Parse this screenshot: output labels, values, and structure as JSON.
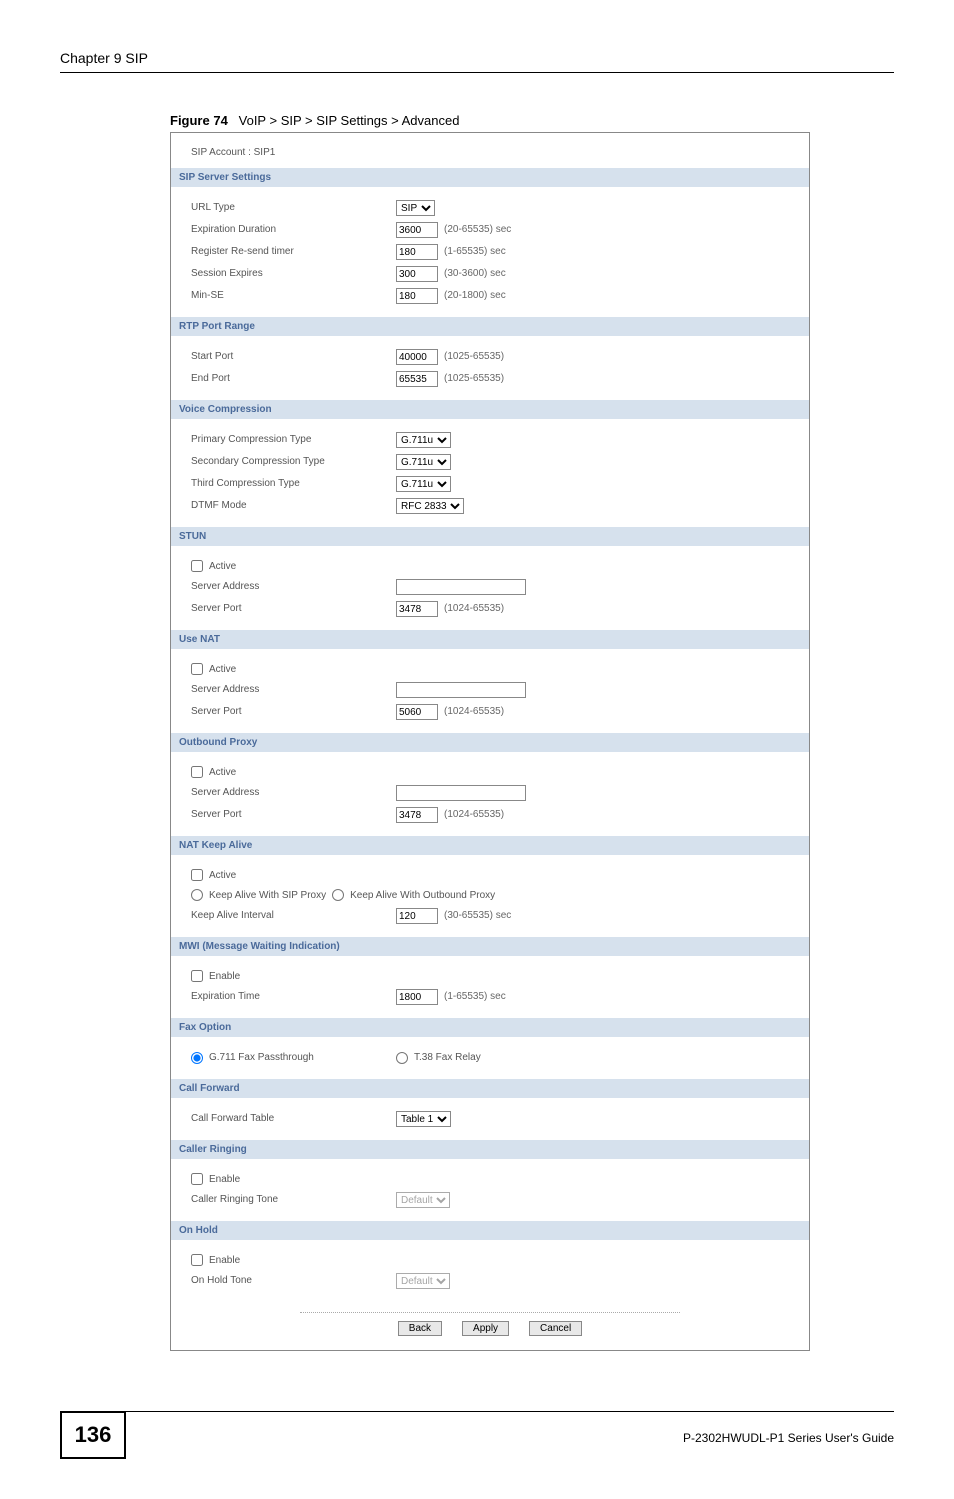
{
  "chapter": "Chapter 9 SIP",
  "figure_label": "Figure 74",
  "figure_title": "VoIP > SIP > SIP Settings > Advanced",
  "sip_account_label": "SIP Account : SIP1",
  "sections": {
    "sip_server": {
      "title": "SIP Server Settings",
      "url_type": {
        "label": "URL Type",
        "value": "SIP"
      },
      "expiration_duration": {
        "label": "Expiration Duration",
        "value": "3600",
        "hint": "(20-65535) sec"
      },
      "register_resend": {
        "label": "Register Re-send timer",
        "value": "180",
        "hint": "(1-65535) sec"
      },
      "session_expires": {
        "label": "Session Expires",
        "value": "300",
        "hint": "(30-3600) sec"
      },
      "min_se": {
        "label": "Min-SE",
        "value": "180",
        "hint": "(20-1800) sec"
      }
    },
    "rtp": {
      "title": "RTP Port Range",
      "start_port": {
        "label": "Start Port",
        "value": "40000",
        "hint": "(1025-65535)"
      },
      "end_port": {
        "label": "End Port",
        "value": "65535",
        "hint": "(1025-65535)"
      }
    },
    "voice_compression": {
      "title": "Voice Compression",
      "primary": {
        "label": "Primary Compression Type",
        "value": "G.711u"
      },
      "secondary": {
        "label": "Secondary Compression Type",
        "value": "G.711u"
      },
      "third": {
        "label": "Third Compression Type",
        "value": "G.711u"
      },
      "dtmf": {
        "label": "DTMF Mode",
        "value": "RFC 2833"
      }
    },
    "stun": {
      "title": "STUN",
      "active": "Active",
      "server_address": {
        "label": "Server Address",
        "value": ""
      },
      "server_port": {
        "label": "Server Port",
        "value": "3478",
        "hint": "(1024-65535)"
      }
    },
    "use_nat": {
      "title": "Use NAT",
      "active": "Active",
      "server_address": {
        "label": "Server Address",
        "value": ""
      },
      "server_port": {
        "label": "Server Port",
        "value": "5060",
        "hint": "(1024-65535)"
      }
    },
    "outbound_proxy": {
      "title": "Outbound Proxy",
      "active": "Active",
      "server_address": {
        "label": "Server Address",
        "value": ""
      },
      "server_port": {
        "label": "Server Port",
        "value": "3478",
        "hint": "(1024-65535)"
      }
    },
    "nat_keep_alive": {
      "title": "NAT Keep Alive",
      "active": "Active",
      "radio1": "Keep Alive With SIP Proxy",
      "radio2": "Keep Alive With Outbound Proxy",
      "interval": {
        "label": "Keep Alive Interval",
        "value": "120",
        "hint": "(30-65535) sec"
      }
    },
    "mwi": {
      "title": "MWI (Message Waiting Indication)",
      "enable": "Enable",
      "expiration": {
        "label": "Expiration Time",
        "value": "1800",
        "hint": "(1-65535) sec"
      }
    },
    "fax": {
      "title": "Fax Option",
      "opt1": "G.711 Fax Passthrough",
      "opt2": "T.38 Fax Relay"
    },
    "call_forward": {
      "title": "Call Forward",
      "table": {
        "label": "Call Forward Table",
        "value": "Table 1"
      }
    },
    "caller_ringing": {
      "title": "Caller Ringing",
      "enable": "Enable",
      "tone": {
        "label": "Caller Ringing Tone",
        "value": "Default"
      }
    },
    "on_hold": {
      "title": "On Hold",
      "enable": "Enable",
      "tone": {
        "label": "On Hold Tone",
        "value": "Default"
      }
    }
  },
  "buttons": {
    "back": "Back",
    "apply": "Apply",
    "cancel": "Cancel"
  },
  "page_number": "136",
  "footer_text": "P-2302HWUDL-P1 Series User's Guide"
}
